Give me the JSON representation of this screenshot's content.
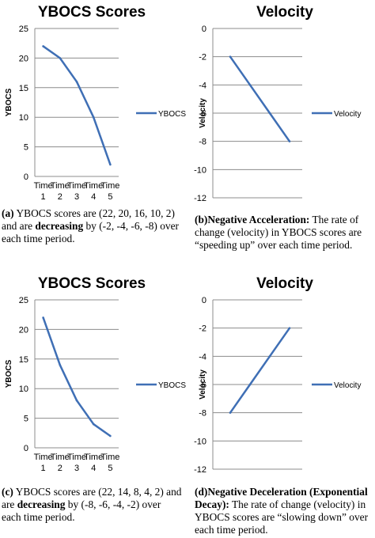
{
  "chart_data": [
    {
      "type": "line",
      "title": "YBOCS Scores",
      "ylabel": "YBOCS",
      "xlabel": "",
      "categories": [
        "Time 1",
        "Time 2",
        "Time 3",
        "Time 4",
        "Time 5"
      ],
      "xtick_top": [
        "Time",
        "Time",
        "Time",
        "Time",
        "Time"
      ],
      "xtick_bottom": [
        "1",
        "2",
        "3",
        "4",
        "5"
      ],
      "ylim": [
        0,
        25
      ],
      "yticks": [
        0,
        5,
        10,
        15,
        20,
        25
      ],
      "series": [
        {
          "name": "YBOCS",
          "values": [
            22,
            20,
            16,
            10,
            2
          ],
          "color": "#3f6fb5"
        }
      ],
      "legend": "right"
    },
    {
      "type": "line",
      "title": "Velocity",
      "ylabel": "Velocity",
      "xlabel": "",
      "categories": [
        "",
        "",
        "",
        ""
      ],
      "ylim": [
        -12,
        0
      ],
      "yticks": [
        0,
        -2,
        -4,
        -6,
        -8,
        -10,
        -12
      ],
      "series": [
        {
          "name": "Velocity",
          "values": [
            -2,
            -4,
            -6,
            -8
          ],
          "color": "#3f6fb5"
        }
      ],
      "legend": "right"
    },
    {
      "type": "line",
      "title": "YBOCS Scores",
      "ylabel": "YBOCS",
      "xlabel": "",
      "categories": [
        "Time 1",
        "Time 2",
        "Time 3",
        "Time 4",
        "Time 5"
      ],
      "xtick_top": [
        "Time",
        "Time",
        "Time",
        "Time",
        "Time"
      ],
      "xtick_bottom": [
        "1",
        "2",
        "3",
        "4",
        "5"
      ],
      "ylim": [
        0,
        25
      ],
      "yticks": [
        0,
        5,
        10,
        15,
        20,
        25
      ],
      "series": [
        {
          "name": "YBOCS",
          "values": [
            22,
            14,
            8,
            4,
            2
          ],
          "color": "#3f6fb5"
        }
      ],
      "legend": "right"
    },
    {
      "type": "line",
      "title": "Velocity",
      "ylabel": "Velocity",
      "xlabel": "",
      "categories": [
        "",
        "",
        "",
        ""
      ],
      "ylim": [
        -12,
        0
      ],
      "yticks": [
        0,
        -2,
        -4,
        -6,
        -8,
        -10,
        -12
      ],
      "series": [
        {
          "name": "Velocity",
          "values": [
            -8,
            -6,
            -4,
            -2
          ],
          "color": "#3f6fb5"
        }
      ],
      "legend": "right"
    }
  ],
  "captions": [
    {
      "tag": "(a)",
      "t1": " YBOCS scores are (22, 20, 16, 10, 2) and are ",
      "b": "decreasing",
      "t2": " by (-2, -4, -6, -8) over each time period."
    },
    {
      "tag": "(b)",
      "b": "Negative Acceleration:",
      "t2": " The rate of change (velocity) in YBOCS scores are “speeding up” over each time period."
    },
    {
      "tag": "(c)",
      "t1": " YBOCS scores are (22, 14, 8, 4, 2) and are ",
      "b": "decreasing",
      "t2": " by (-8, -6, -4, -2) over each time period."
    },
    {
      "tag": "(d)",
      "b": "Negative Deceleration (Exponential Decay):",
      "t2": " The rate of change (velocity) in YBOCS scores are “slowing down” over each time period."
    }
  ]
}
